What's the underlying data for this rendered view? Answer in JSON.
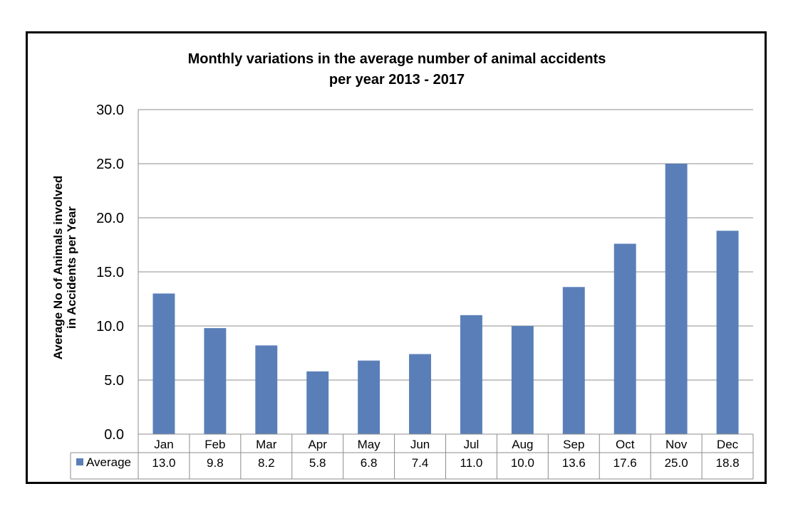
{
  "chart_data": {
    "type": "bar",
    "title_lines": [
      "Monthly variations in the average number of animal accidents",
      "per year 2013 - 2017"
    ],
    "ylabel_lines": [
      "Average No of Animals involved",
      "in Accidents per Year"
    ],
    "xlabel": "",
    "ylim": [
      0,
      30
    ],
    "yticks": [
      "0.0",
      "5.0",
      "10.0",
      "15.0",
      "20.0",
      "25.0",
      "30.0"
    ],
    "ytick_values": [
      0,
      5,
      10,
      15,
      20,
      25,
      30
    ],
    "categories": [
      "Jan",
      "Feb",
      "Mar",
      "Apr",
      "May",
      "Jun",
      "Jul",
      "Aug",
      "Sep",
      "Oct",
      "Nov",
      "Dec"
    ],
    "series": [
      {
        "name": "Average",
        "values": [
          13.0,
          9.8,
          8.2,
          5.8,
          6.8,
          7.4,
          11.0,
          10.0,
          13.6,
          17.6,
          25.0,
          18.8
        ],
        "labels": [
          "13.0",
          "9.8",
          "8.2",
          "5.8",
          "6.8",
          "7.4",
          "11.0",
          "10.0",
          "13.6",
          "17.6",
          "25.0",
          "18.8"
        ],
        "color": "#5a7fb8"
      }
    ],
    "grid": true,
    "legend": "data-table",
    "colors": {
      "bar": "#5a7fb8",
      "grid": "#8c8c8c",
      "frame": "#000000"
    }
  }
}
